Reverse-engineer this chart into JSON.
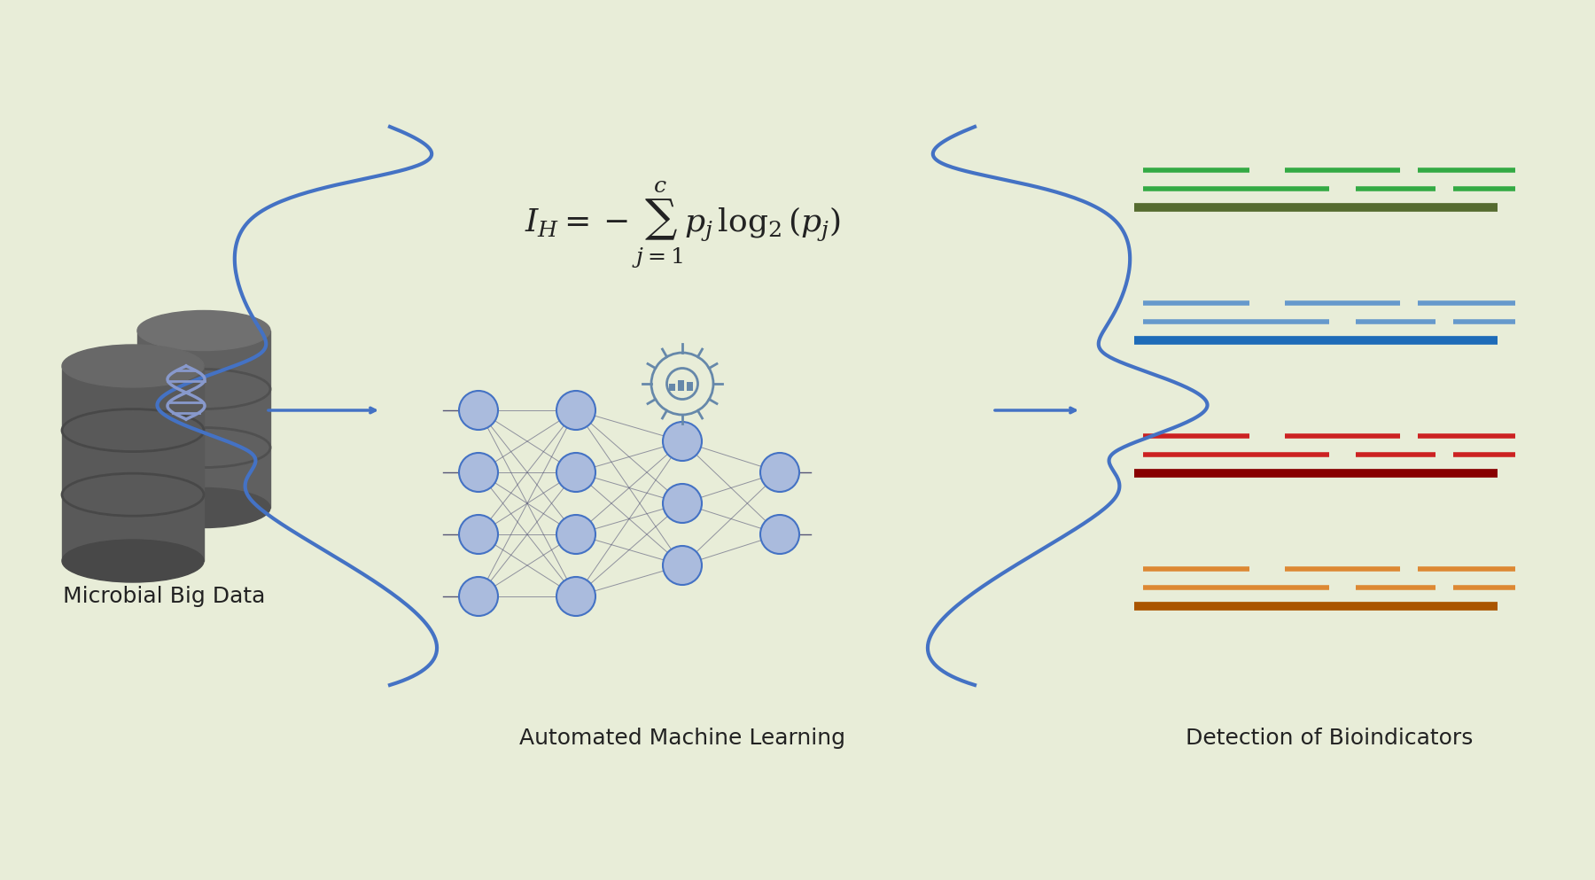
{
  "bg_color": "#e8edd8",
  "arrow_color": "#4472c4",
  "formula_text": "$I_H = -\\sum_{j=1}^{c} p_j\\, log_2(p_j)$",
  "label_left": "Microbial Big Data",
  "label_middle": "Automated Machine Learning",
  "label_right": "Detection of Bioindicators",
  "db_color_dark": "#555555",
  "db_color_mid": "#666666",
  "db_color_light": "#777777",
  "db_stripe": "#4a4a4a",
  "dna_color": "#8899cc",
  "neuron_color": "#aabbdd",
  "neuron_edge": "#4472c4",
  "brace_color": "#4472c4",
  "group1_colors": [
    "#33aa44",
    "#556b2f"
  ],
  "group2_colors": [
    "#6699cc",
    "#1e6bb8"
  ],
  "group3_colors": [
    "#cc2222",
    "#880000"
  ],
  "group4_colors": [
    "#dd8833",
    "#aa5500"
  ],
  "font_size_labels": 18,
  "font_size_formula": 22
}
